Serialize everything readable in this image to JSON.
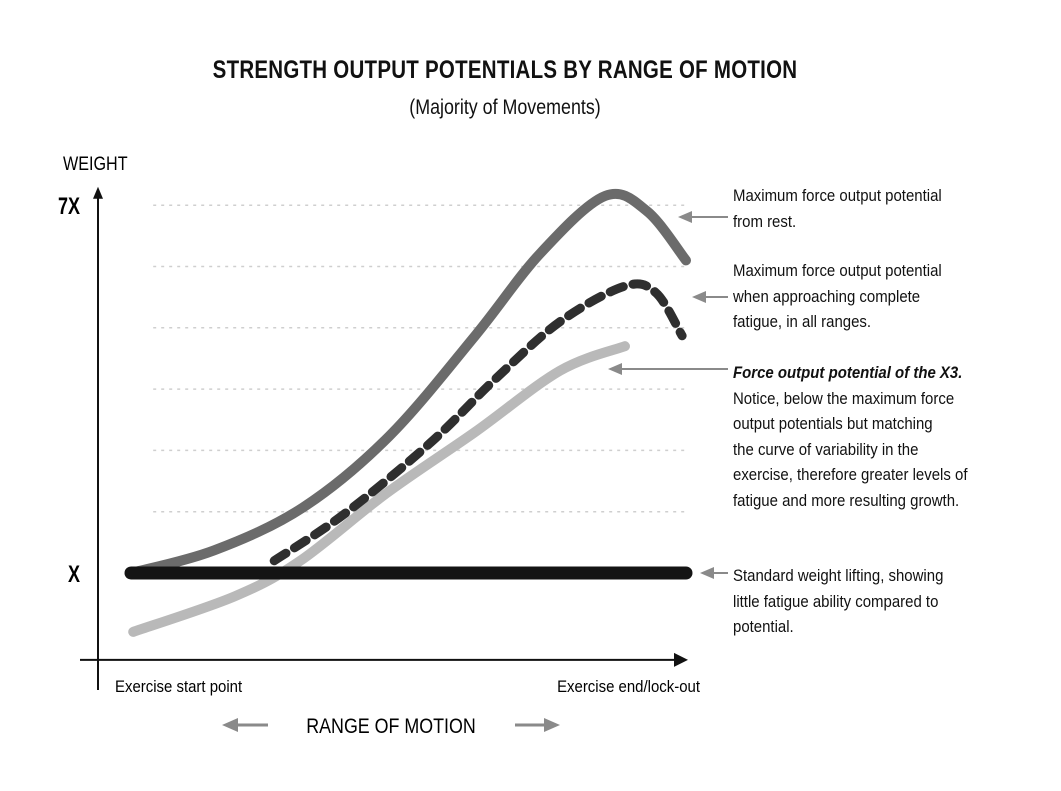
{
  "chart_data": {
    "type": "line",
    "title": "STRENGTH OUTPUT POTENTIALS BY RANGE OF MOTION",
    "subtitle": "(Majority of Movements)",
    "ylabel": "WEIGHT",
    "xlabel": "RANGE OF MOTION",
    "y_ticks": [
      {
        "value": 7,
        "label": "7X"
      },
      {
        "value": 1,
        "label": "X"
      }
    ],
    "x_ticks": [
      {
        "value": 0,
        "label": "Exercise start point"
      },
      {
        "value": 100,
        "label": "Exercise end/lock-out"
      }
    ],
    "xlim": [
      -6,
      106
    ],
    "ylim": [
      -0.4,
      7.3
    ],
    "grid": {
      "horizontal": true,
      "style": "dotted",
      "values": [
        1,
        2,
        3,
        4,
        5,
        6,
        7
      ]
    },
    "series": [
      {
        "key": "max_rest",
        "color": "#6b6b6b",
        "style": "solid",
        "x": [
          0,
          15,
          31,
          46.5,
          62,
          73.6,
          85.4,
          93,
          100
        ],
        "y": [
          1,
          1.37,
          2.07,
          3.23,
          4.87,
          6.2,
          7.15,
          6.9,
          6.1
        ]
      },
      {
        "key": "max_fatigue",
        "color": "#2f2f2f",
        "style": "dashed",
        "x": [
          25.8,
          38.4,
          53.9,
          65.6,
          77.3,
          89,
          94.6,
          99.3
        ],
        "y": [
          1.2,
          1.96,
          3.12,
          4.16,
          5.1,
          5.68,
          5.57,
          4.87
        ]
      },
      {
        "key": "x3",
        "color": "#b9b9b9",
        "style": "solid",
        "x": [
          0.4,
          18.7,
          30.5,
          46,
          62,
          77.3,
          89
        ],
        "y": [
          0.04,
          0.62,
          1.2,
          2.3,
          3.3,
          4.3,
          4.7
        ]
      },
      {
        "key": "standard",
        "color": "#141414",
        "style": "solid",
        "x": [
          0,
          100
        ],
        "y": [
          1,
          1
        ]
      }
    ],
    "annotations": [
      {
        "series": "max_rest",
        "lines": [
          "Maximum force output potential",
          "from rest."
        ]
      },
      {
        "series": "max_fatigue",
        "lines": [
          "Maximum force output potential",
          "when approaching complete",
          "fatigue, in all ranges."
        ]
      },
      {
        "series": "x3",
        "emphasis": "Force output potential of the X3.",
        "lines": [
          "Notice, below the maximum force",
          "output potentials but matching",
          "the curve of variability in the",
          "exercise, therefore greater levels of",
          "fatigue and more resulting growth."
        ]
      },
      {
        "series": "standard",
        "lines": [
          "Standard weight lifting, showing",
          "little fatigue ability compared to",
          "potential."
        ]
      }
    ],
    "colors": {
      "axis": "#111111",
      "grid": "#cfcfcf",
      "arrow": "#8a8a8a"
    }
  }
}
